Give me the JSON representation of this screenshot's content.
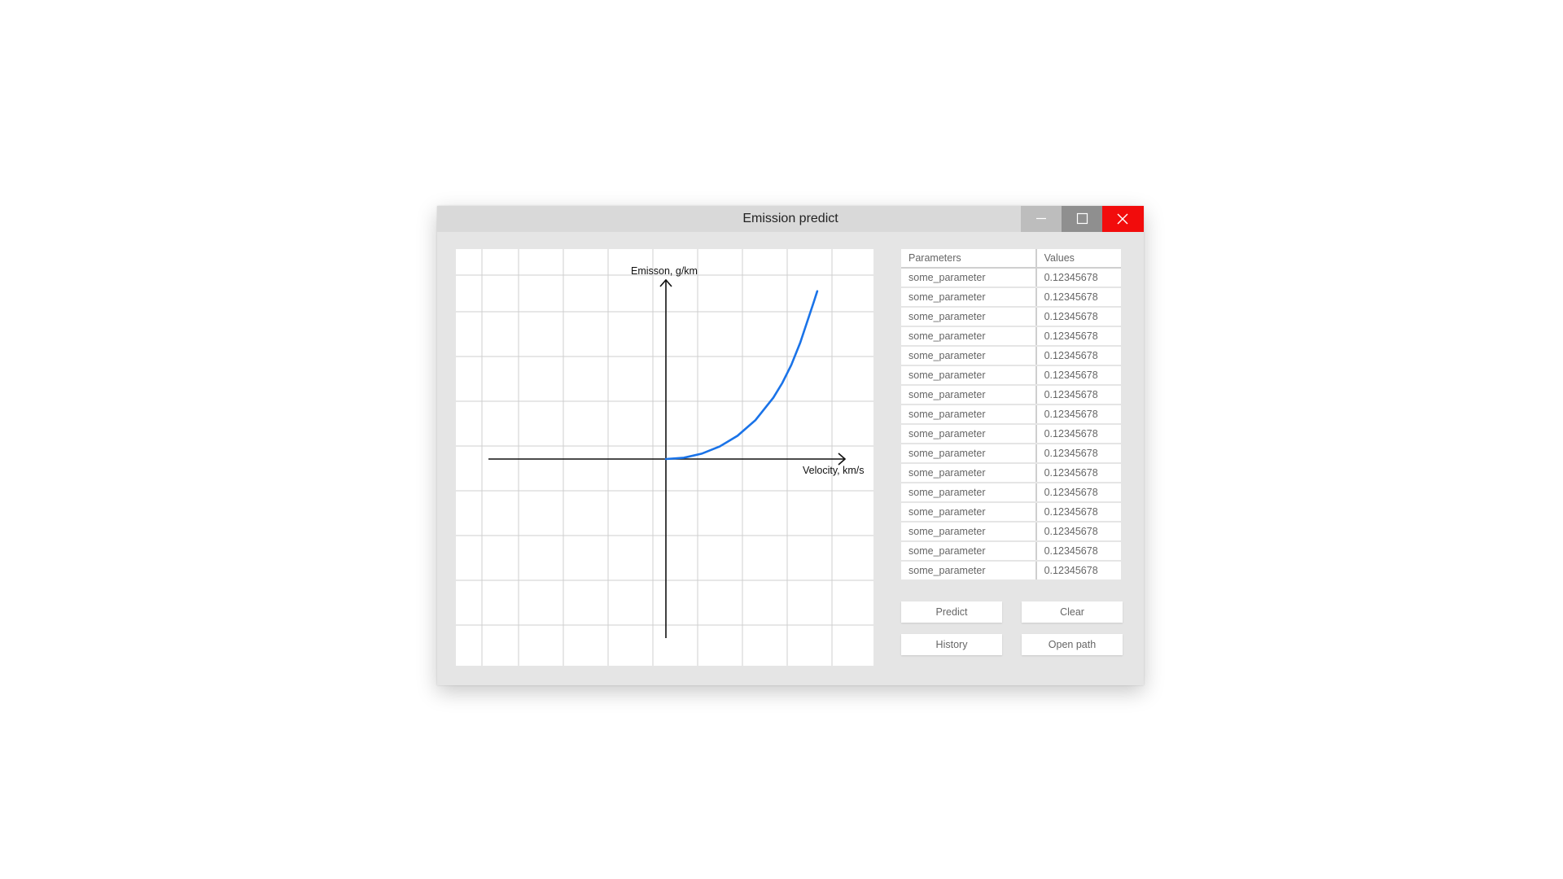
{
  "window": {
    "title": "Emission predict",
    "controls": {
      "minimize": "minimize-icon",
      "maximize": "maximize-icon",
      "close": "close-icon"
    },
    "colors": {
      "close": "#f20c0c",
      "maximize": "#8f8f8f",
      "minimize": "#bdbdbd"
    }
  },
  "chart_data": {
    "type": "line",
    "title": "",
    "xlabel": "Velocity, km/s",
    "ylabel": "Emisson, g/km",
    "grid": true,
    "legend": "none",
    "xlim": [
      -4,
      4
    ],
    "ylim": [
      -4,
      4
    ],
    "series": [
      {
        "color": "#1a73e8",
        "x": [
          0,
          0.4,
          0.8,
          1.2,
          1.6,
          2.0,
          2.4,
          2.6,
          2.8,
          3.0,
          3.1,
          3.2,
          3.3,
          3.38
        ],
        "y": [
          0,
          0.03,
          0.12,
          0.28,
          0.52,
          0.87,
          1.37,
          1.7,
          2.1,
          2.6,
          2.9,
          3.2,
          3.5,
          3.75
        ]
      }
    ]
  },
  "table": {
    "headers": [
      "Parameters",
      "Values"
    ],
    "rows": [
      [
        "some_parameter",
        "0.12345678"
      ],
      [
        "some_parameter",
        "0.12345678"
      ],
      [
        "some_parameter",
        "0.12345678"
      ],
      [
        "some_parameter",
        "0.12345678"
      ],
      [
        "some_parameter",
        "0.12345678"
      ],
      [
        "some_parameter",
        "0.12345678"
      ],
      [
        "some_parameter",
        "0.12345678"
      ],
      [
        "some_parameter",
        "0.12345678"
      ],
      [
        "some_parameter",
        "0.12345678"
      ],
      [
        "some_parameter",
        "0.12345678"
      ],
      [
        "some_parameter",
        "0.12345678"
      ],
      [
        "some_parameter",
        "0.12345678"
      ],
      [
        "some_parameter",
        "0.12345678"
      ],
      [
        "some_parameter",
        "0.12345678"
      ],
      [
        "some_parameter",
        "0.12345678"
      ],
      [
        "some_parameter",
        "0.12345678"
      ]
    ]
  },
  "buttons": {
    "predict": "Predict",
    "clear": "Clear",
    "history": "History",
    "open_path": "Open path"
  }
}
